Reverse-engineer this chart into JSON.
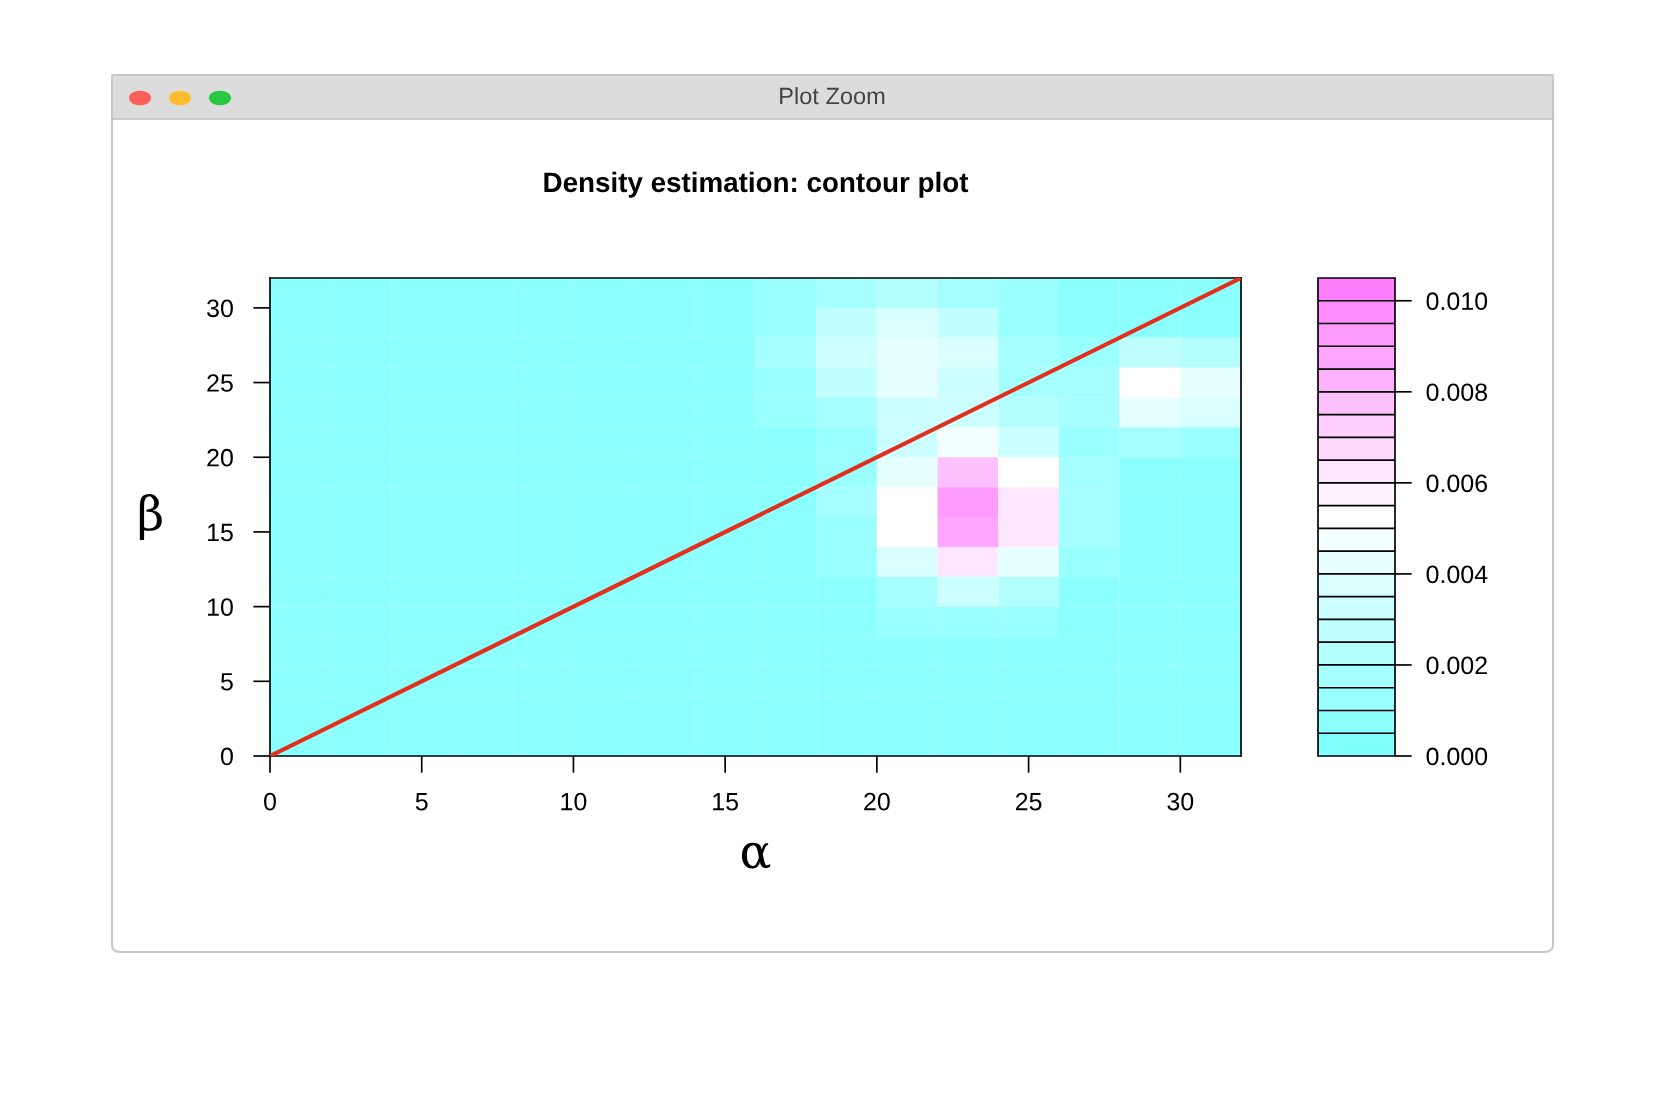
{
  "chart_data": {
    "type": "heatmap",
    "title": "Density estimation: contour plot",
    "xlabel": "α",
    "ylabel": "β",
    "annotations": [
      "Plot Zoom"
    ],
    "xlim": [
      0,
      32
    ],
    "ylim": [
      0,
      32
    ],
    "xticks": [
      0,
      5,
      10,
      15,
      20,
      25,
      30
    ],
    "yticks": [
      0,
      5,
      10,
      15,
      20,
      25,
      30
    ],
    "clim": [
      0,
      0.0105
    ],
    "cticks": [
      {
        "value": 0,
        "label": "0.000"
      },
      {
        "value": 0.002,
        "label": "0.002"
      },
      {
        "value": 0.004,
        "label": "0.004"
      },
      {
        "value": 0.006,
        "label": "0.006"
      },
      {
        "value": 0.008,
        "label": "0.008"
      },
      {
        "value": 0.01,
        "label": "0.010"
      }
    ],
    "cells": [
      [
        0.0005,
        0.0005,
        0.0005,
        0.0005,
        0.0005,
        0.0005,
        0.0005,
        0.0006,
        0.001,
        0.0017,
        0.0021,
        0.0017,
        0.001,
        0.0006,
        0.0005,
        0.0005
      ],
      [
        0.0005,
        0.0005,
        0.0005,
        0.0005,
        0.0005,
        0.0005,
        0.0005,
        0.0007,
        0.0014,
        0.0028,
        0.0037,
        0.0029,
        0.0014,
        0.0008,
        0.0009,
        0.0008
      ],
      [
        0.0005,
        0.0005,
        0.0005,
        0.0005,
        0.0005,
        0.0005,
        0.0005,
        0.0007,
        0.0016,
        0.0034,
        0.0045,
        0.0035,
        0.0017,
        0.0012,
        0.0027,
        0.0024
      ],
      [
        0.0005,
        0.0005,
        0.0005,
        0.0005,
        0.0005,
        0.0005,
        0.0005,
        0.0007,
        0.0014,
        0.0029,
        0.004,
        0.0033,
        0.0017,
        0.0017,
        0.0052,
        0.0044
      ],
      [
        0.0005,
        0.0005,
        0.0005,
        0.0005,
        0.0005,
        0.0005,
        0.0005,
        0.0006,
        0.001,
        0.0019,
        0.003,
        0.0033,
        0.0021,
        0.0016,
        0.0041,
        0.0035
      ],
      [
        0.0005,
        0.0005,
        0.0005,
        0.0005,
        0.0005,
        0.0005,
        0.0005,
        0.0005,
        0.0007,
        0.0013,
        0.0032,
        0.0049,
        0.0033,
        0.0014,
        0.0016,
        0.0014
      ],
      [
        0.0005,
        0.0005,
        0.0005,
        0.0005,
        0.0005,
        0.0005,
        0.0005,
        0.0005,
        0.0006,
        0.0014,
        0.0044,
        0.0075,
        0.0051,
        0.0016,
        0.0007,
        0.0006
      ],
      [
        0.0005,
        0.0005,
        0.0005,
        0.0005,
        0.0005,
        0.0005,
        0.0005,
        0.0005,
        0.0006,
        0.0015,
        0.0054,
        0.0094,
        0.0065,
        0.0019,
        0.0006,
        0.0005
      ],
      [
        0.0005,
        0.0005,
        0.0005,
        0.0005,
        0.0005,
        0.0005,
        0.0005,
        0.0005,
        0.0006,
        0.0014,
        0.005,
        0.0087,
        0.006,
        0.0018,
        0.0006,
        0.0005
      ],
      [
        0.0005,
        0.0005,
        0.0005,
        0.0005,
        0.0005,
        0.0005,
        0.0005,
        0.0005,
        0.0005,
        0.0011,
        0.0035,
        0.006,
        0.0042,
        0.0014,
        0.0006,
        0.0005
      ],
      [
        0.0005,
        0.0005,
        0.0005,
        0.0005,
        0.0005,
        0.0005,
        0.0005,
        0.0005,
        0.0005,
        0.0008,
        0.0019,
        0.0031,
        0.0022,
        0.0009,
        0.0005,
        0.0005
      ],
      [
        0.0005,
        0.0005,
        0.0005,
        0.0005,
        0.0005,
        0.0005,
        0.0005,
        0.0005,
        0.0005,
        0.0006,
        0.001,
        0.0014,
        0.0011,
        0.0006,
        0.0005,
        0.0005
      ],
      [
        0.0005,
        0.0005,
        0.0005,
        0.0005,
        0.0005,
        0.0005,
        0.0005,
        0.0005,
        0.0005,
        0.0005,
        0.0006,
        0.0007,
        0.0007,
        0.0005,
        0.0005,
        0.0005
      ],
      [
        0.0005,
        0.0005,
        0.0005,
        0.0005,
        0.0005,
        0.0005,
        0.0005,
        0.0005,
        0.0005,
        0.0005,
        0.0005,
        0.0005,
        0.0005,
        0.0005,
        0.0005,
        0.0005
      ],
      [
        0.0005,
        0.0005,
        0.0005,
        0.0005,
        0.0005,
        0.0005,
        0.0005,
        0.0005,
        0.0005,
        0.0005,
        0.0005,
        0.0005,
        0.0005,
        0.0005,
        0.0005,
        0.0005
      ],
      [
        0.0005,
        0.0005,
        0.0005,
        0.0005,
        0.0005,
        0.0005,
        0.0005,
        0.0005,
        0.0005,
        0.0005,
        0.0005,
        0.0005,
        0.0005,
        0.0005,
        0.0005,
        0.0005
      ]
    ],
    "series": [
      {
        "type": "line",
        "color": "#e3301c",
        "x": [
          0,
          32
        ],
        "values": [
          0,
          32
        ]
      }
    ],
    "grid": false,
    "legend": false
  }
}
